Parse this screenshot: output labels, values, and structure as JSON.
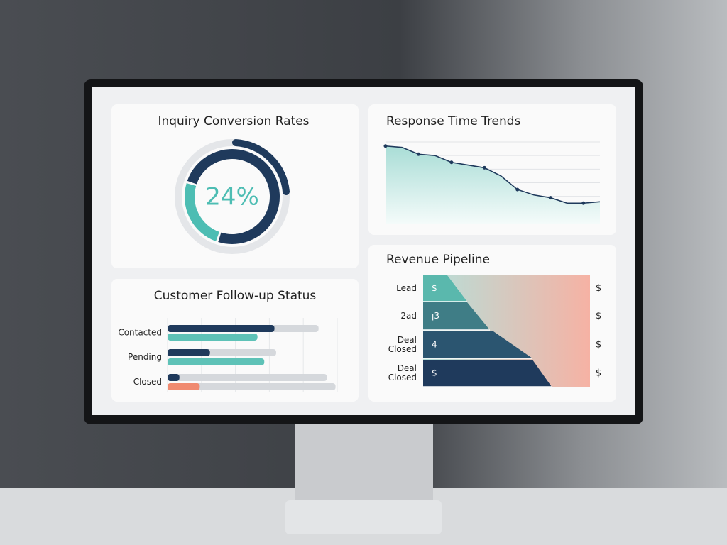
{
  "chart_data": [
    {
      "type": "donut",
      "title": "Inquiry Conversion Rates",
      "values": [
        24
      ],
      "value_labels": [
        "24%"
      ],
      "colors": [
        "#4dbdb3",
        "#1f3a5c"
      ]
    },
    {
      "type": "line",
      "title": "Response Time Trends",
      "categories": [
        null,
        null,
        null,
        null,
        null,
        null,
        null,
        null,
        null,
        null,
        null,
        null,
        null,
        null
      ],
      "values": [
        5.7,
        5.6,
        5.1,
        5.0,
        4.5,
        4.3,
        4.1,
        3.5,
        2.5,
        2.1,
        1.9,
        1.5,
        1.5,
        1.6
      ],
      "color": "#1f3a5c",
      "fill": "#a9ddd6",
      "ylim": [
        0,
        6
      ],
      "yticks": [
        0,
        1,
        2,
        3,
        4,
        5,
        6
      ],
      "grid": true
    },
    {
      "type": "hbar",
      "title": "Customer Follow-up Status",
      "categories": [
        "Contacted",
        "Pending",
        "Closed"
      ],
      "xlim": [
        0,
        100
      ],
      "xticks": [
        0,
        20,
        40,
        60,
        80,
        100
      ],
      "grid": true,
      "series": [
        {
          "color": "#d5d8dc",
          "values": [
            89,
            64,
            94
          ]
        },
        {
          "color": "#1f3a5c",
          "values": [
            63,
            25,
            7
          ]
        },
        {
          "color": "#d5d8dc",
          "values": [
            null,
            null,
            99
          ]
        },
        {
          "colors": [
            "#5ec2b7",
            "#5ec2b7",
            "#f08a70"
          ],
          "values": [
            53,
            57,
            19
          ]
        }
      ]
    },
    {
      "type": "funnel",
      "title": "Revenue Pipeline",
      "categories": [
        "Lead",
        "2ad",
        "Deal Closed",
        "Deal Closed"
      ],
      "inner_labels": [
        "$",
        "ꞁ3",
        "4",
        "$"
      ],
      "right_labels": [
        "$",
        "$",
        "$",
        "$"
      ],
      "colors": [
        "#5ab8ad",
        "#3f7d86",
        "#2b5570",
        "#1f3a5c"
      ]
    }
  ]
}
